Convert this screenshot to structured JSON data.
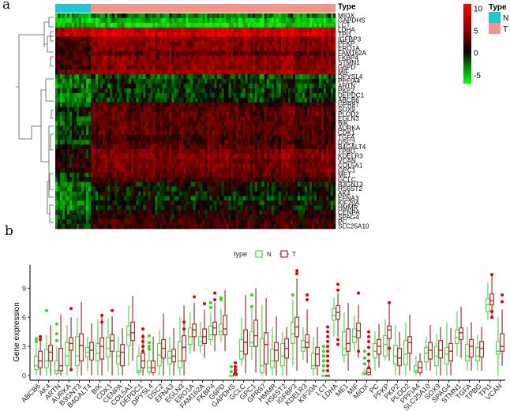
{
  "panels": {
    "a": "a",
    "b": "b"
  },
  "chart_data": [
    {
      "type": "heatmap",
      "annotation_title": "Type",
      "legend": {
        "title": "Type",
        "groups": [
          {
            "label": "N",
            "color": "#1CC8D4"
          },
          {
            "label": "T",
            "color": "#F4958C"
          }
        ]
      },
      "colorbar": {
        "ticks": [
          10,
          5,
          0,
          -5
        ],
        "range": [
          -7,
          11
        ],
        "low_color": "#00FF00",
        "mid_color": "#000000",
        "high_color": "#FF0000"
      },
      "rows": [
        "MIOX",
        "GAPDHS",
        "LCT",
        "LDHA",
        "TPI1",
        "IGFBP3",
        "PFKP",
        "ERO1A",
        "FAM162A",
        "FKBP4",
        "STMN1",
        "G6PD",
        "MIF",
        "DPYSL4",
        "PPFIA4",
        "ARTN",
        "PKP2",
        "DEPDC1",
        "ABCB6",
        "GPR87",
        "SOX9",
        "PLOD2",
        "EGLN3",
        "BIK",
        "AURKA",
        "CDK1",
        "TGFA",
        "DSC2",
        "B4GALT4",
        "TPBG",
        "KDELR3",
        "VCAN",
        "COL5A1",
        "GPC1",
        "ME1",
        "GCLC",
        "B3GNT3",
        "HS6ST2",
        "AK4",
        "EFNA3",
        "KIF20A",
        "HMMR",
        "CENPA",
        "SPAG4",
        "PC",
        "SLC25A10"
      ],
      "row_mean_N": [
        -4,
        -5,
        -5,
        7,
        8,
        2,
        2,
        2,
        1,
        2,
        2,
        2,
        3,
        -3,
        -3,
        -3,
        -2,
        -3,
        -3,
        -2,
        0,
        -1,
        -2,
        -2,
        -1,
        -1,
        -1,
        -2,
        0,
        1,
        1,
        1,
        1,
        1,
        -1,
        -1,
        -3,
        -3,
        -3,
        -3,
        -3,
        -3,
        -2,
        -2,
        -1,
        -1
      ],
      "row_mean_T": [
        -3,
        -5,
        -6,
        8,
        9,
        5,
        5,
        5,
        3,
        5,
        5,
        5,
        6,
        -2,
        -1,
        -1,
        -1,
        -1,
        -1,
        2,
        3,
        3,
        3,
        3,
        3,
        3,
        2,
        2,
        3,
        4,
        5,
        4,
        4,
        4,
        3,
        2,
        0,
        0,
        0,
        -1,
        0,
        0,
        1,
        1,
        2,
        2
      ]
    },
    {
      "type": "box",
      "legend": {
        "title": "type",
        "series": [
          {
            "name": "N",
            "color": "#55D655"
          },
          {
            "name": "T",
            "color": "#A8302F"
          }
        ]
      },
      "ylabel": "Gene expression",
      "yticks": [
        0,
        3,
        6,
        9
      ],
      "ylim": [
        0,
        11
      ],
      "categories": [
        "ABCB6",
        "AK4",
        "ARTN",
        "AURKA",
        "B3GNT3",
        "B4GALT4",
        "BIK",
        "CDK1",
        "CENPA",
        "COL5A1",
        "DEPDC1",
        "DPYSL4",
        "DSC2",
        "EFNA3",
        "EGLN3",
        "ERO1A",
        "FAM162A",
        "FKBP4",
        "G6PD",
        "GAPDHS",
        "GCLC",
        "GPC1",
        "GPR87",
        "HMMR",
        "HS6ST2",
        "IGFBP3",
        "KDELR3",
        "KIF20A",
        "LCT",
        "LDHA",
        "ME1",
        "MIF",
        "MIOX",
        "PC",
        "PFKP",
        "PKP2",
        "PLOD2",
        "PPFIA4",
        "SLC25A10",
        "SOX9",
        "SPAG4",
        "STMN1",
        "TGFA",
        "TPBG",
        "TPI1",
        "VCAN"
      ],
      "stats_order": [
        "min",
        "q1",
        "median",
        "q3",
        "max"
      ],
      "N": [
        [
          0,
          0.6,
          1.0,
          2.0,
          3.2
        ],
        [
          0,
          0.8,
          1.5,
          2.7,
          4.2
        ],
        [
          0,
          0.2,
          0.5,
          1.5,
          3.0
        ],
        [
          0,
          1.0,
          2.0,
          3.4,
          5.2
        ],
        [
          0,
          1.0,
          2.0,
          4.0,
          6.0
        ],
        [
          0.5,
          1.9,
          2.4,
          2.9,
          4.0
        ],
        [
          0,
          1.5,
          2.3,
          3.3,
          5.8
        ],
        [
          0.4,
          1.9,
          2.8,
          3.9,
          5.9
        ],
        [
          0,
          1.2,
          2.0,
          2.5,
          4.0
        ],
        [
          1.0,
          3.1,
          4.2,
          5.1,
          7.2
        ],
        [
          0,
          0.3,
          0.5,
          2.0,
          3.0
        ],
        [
          0,
          0.4,
          0.8,
          1.5,
          2.5
        ],
        [
          0,
          1.0,
          2.1,
          3.3,
          4.7
        ],
        [
          0,
          1.2,
          1.8,
          2.5,
          4.0
        ],
        [
          0,
          0.8,
          1.5,
          3.5,
          6.0
        ],
        [
          2.2,
          3.2,
          4.0,
          4.9,
          6.5
        ],
        [
          2.3,
          3.1,
          3.5,
          4.0,
          5.5
        ],
        [
          3.1,
          3.7,
          4.2,
          5.1,
          6.5
        ],
        [
          3.4,
          4.2,
          4.5,
          5.3,
          6.9
        ],
        [
          0,
          0,
          0,
          0,
          0
        ],
        [
          1.0,
          1.7,
          2.5,
          3.7,
          6.0
        ],
        [
          1.6,
          3.0,
          3.4,
          4.5,
          6.9
        ],
        [
          0,
          0.3,
          1.0,
          3.8,
          7.3
        ],
        [
          0,
          0.8,
          1.5,
          2.7,
          5.0
        ],
        [
          0,
          1.0,
          2.0,
          3.3,
          4.5
        ],
        [
          1.0,
          3.3,
          4.3,
          5.5,
          7.8
        ],
        [
          1.6,
          2.5,
          2.9,
          3.6,
          5.0
        ],
        [
          0,
          0.7,
          1.0,
          2.3,
          4.0
        ],
        [
          0,
          0,
          0,
          0,
          0
        ],
        [
          4.0,
          5.7,
          6.2,
          6.9,
          8.0
        ],
        [
          1.3,
          2.1,
          2.8,
          4.5,
          6.5
        ],
        [
          2.5,
          3.4,
          4.0,
          4.8,
          6.2
        ],
        [
          0,
          0.1,
          0.2,
          0.3,
          0.8
        ],
        [
          0.5,
          1.8,
          2.5,
          3.3,
          4.5
        ],
        [
          1.5,
          2.0,
          3.2,
          4.1,
          5.8
        ],
        [
          0,
          1.2,
          2.0,
          3.1,
          5.2
        ],
        [
          0,
          1.1,
          2.2,
          3.6,
          5.5
        ],
        [
          0,
          0.3,
          0.5,
          1.0,
          2.0
        ],
        [
          0.5,
          1.4,
          2.3,
          2.9,
          4.0
        ],
        [
          0,
          1.0,
          2.0,
          3.0,
          4.3
        ],
        [
          0,
          1.2,
          2.2,
          2.9,
          5.5
        ],
        [
          2.0,
          3.3,
          3.9,
          4.7,
          6.6
        ],
        [
          0.5,
          1.5,
          2.0,
          3.2,
          5.0
        ],
        [
          0.5,
          1.5,
          2.0,
          2.9,
          4.2
        ],
        [
          5.7,
          6.6,
          7.3,
          7.9,
          9.5
        ],
        [
          0,
          2.2,
          2.5,
          3.5,
          6.0
        ]
      ],
      "T": [
        [
          0,
          0.8,
          1.5,
          2.5,
          4.0
        ],
        [
          0,
          1.5,
          2.4,
          3.1,
          5.2
        ],
        [
          0,
          0.5,
          1.0,
          2.8,
          6.3
        ],
        [
          0.5,
          2.6,
          3.3,
          3.9,
          6.0
        ],
        [
          0,
          1.5,
          3.1,
          4.3,
          7.6
        ],
        [
          0,
          1.6,
          2.6,
          3.4,
          5.4
        ],
        [
          0,
          1.7,
          3.0,
          3.9,
          6.1
        ],
        [
          0,
          2.5,
          3.6,
          4.2,
          6.1
        ],
        [
          0,
          1.0,
          2.4,
          3.2,
          4.9
        ],
        [
          1.5,
          3.6,
          4.4,
          5.5,
          8.2
        ],
        [
          0,
          0.8,
          1.5,
          2.3,
          4.3
        ],
        [
          0,
          0.3,
          0.8,
          1.5,
          4.0
        ],
        [
          0,
          1.8,
          2.8,
          3.7,
          6.4
        ],
        [
          0,
          1.4,
          2.0,
          2.7,
          4.9
        ],
        [
          0,
          1.5,
          2.9,
          4.1,
          7.2
        ],
        [
          2.5,
          4.0,
          4.7,
          5.3,
          7.5
        ],
        [
          1.8,
          3.3,
          4.0,
          4.8,
          6.8
        ],
        [
          2.5,
          4.2,
          4.9,
          5.5,
          7.5
        ],
        [
          2.5,
          4.2,
          4.8,
          6.2,
          8.8
        ],
        [
          0,
          0,
          0.1,
          0.2,
          0.3
        ],
        [
          0.2,
          2.2,
          3.4,
          4.7,
          8.3
        ],
        [
          0.3,
          3.0,
          4.1,
          5.7,
          9.0
        ],
        [
          0,
          1.2,
          3.2,
          4.4,
          8.0
        ],
        [
          0,
          1.5,
          2.6,
          3.4,
          6.1
        ],
        [
          0,
          1.8,
          2.8,
          3.8,
          5.0
        ],
        [
          0.5,
          4.0,
          5.0,
          6.0,
          10.0
        ],
        [
          1.3,
          2.9,
          3.4,
          4.2,
          6.8
        ],
        [
          0,
          1.0,
          2.2,
          2.9,
          5.0
        ],
        [
          0,
          0,
          0,
          0,
          0
        ],
        [
          4.0,
          5.8,
          6.5,
          7.2,
          8.5
        ],
        [
          0.5,
          2.5,
          3.3,
          4.8,
          7.5
        ],
        [
          1.8,
          3.9,
          4.6,
          5.4,
          7.3
        ],
        [
          0,
          0.1,
          0.3,
          0.7,
          1.5
        ],
        [
          0.8,
          2.2,
          3.0,
          3.7,
          5.3
        ],
        [
          1.5,
          3.8,
          4.7,
          5.1,
          7.3
        ],
        [
          0,
          1.0,
          1.8,
          2.8,
          4.5
        ],
        [
          0.5,
          2.3,
          3.4,
          4.0,
          6.3
        ],
        [
          0,
          0.3,
          0.8,
          1.4,
          2.3
        ],
        [
          0.5,
          1.7,
          2.6,
          3.4,
          5.2
        ],
        [
          0,
          1.8,
          2.6,
          3.6,
          5.0
        ],
        [
          0,
          1.5,
          2.5,
          3.3,
          4.9
        ],
        [
          1.8,
          3.7,
          4.4,
          4.9,
          7.1
        ],
        [
          0.5,
          1.9,
          3.0,
          3.7,
          5.5
        ],
        [
          0.5,
          1.9,
          2.8,
          3.5,
          5.0
        ],
        [
          6.0,
          7.3,
          7.7,
          8.4,
          10.3
        ],
        [
          1.0,
          2.5,
          3.0,
          4.3,
          6.8
        ]
      ],
      "outliers_N": {
        "ABCB6": [
          3.5,
          3.8
        ],
        "AK4": [
          6.7
        ],
        "ARTN": [
          3.6,
          4.3,
          5.3
        ],
        "DPYSL4": [
          2.7,
          3.0,
          3.4,
          4.1
        ],
        "FKBP4": [
          7.0,
          7.5
        ],
        "G6PD": [
          7.8,
          8.0
        ],
        "GAPDHS": [
          0.4,
          0.9
        ],
        "GPC1": [
          7.1,
          8.3
        ],
        "LCT": [
          0.5,
          1.0,
          1.5,
          2.0,
          2.5,
          3.0
        ],
        "MIOX": [
          1.2,
          1.8,
          2.5
        ],
        "IGFBP3": [
          8.3
        ]
      },
      "outliers_T": {
        "ABCB6": [
          3.7,
          4.0
        ],
        "AURKA": [
          6.9,
          0.6
        ],
        "BIK": [
          5.5,
          6.2
        ],
        "CDK1": [
          6.7
        ],
        "DEPDC1": [
          2.5,
          3.0,
          3.5,
          4.0,
          4.8
        ],
        "EGLN3": [
          4.8,
          5.5
        ],
        "ERO1A": [
          8.1
        ],
        "FAM162A": [
          7.4
        ],
        "FKBP4": [
          8.5,
          7.8
        ],
        "FKBP4_": [],
        "GAPDHS": [
          0.3,
          0.6,
          0.9,
          1.3
        ],
        "IGFBP3": [
          10.5,
          10.8
        ],
        "KDELR3": [
          7.8,
          8.3
        ],
        "LCT": [
          0.5,
          1.0,
          1.5,
          2.0,
          2.5,
          3.0,
          3.5,
          4.0,
          4.5,
          5.0
        ],
        "LDHA": [
          8.8,
          9.4,
          3.2,
          3.7
        ],
        "MIF": [
          8.5,
          2.5
        ],
        "MIOX": [
          0.8,
          1.5,
          2.2,
          2.9,
          3.5,
          4.0,
          4.5
        ],
        "PFKP": [
          7.5,
          2.8
        ],
        "TPI1": [
          10.4,
          6.0,
          6.6
        ],
        "VCAN": [
          7.6,
          8.3
        ]
      }
    }
  ]
}
